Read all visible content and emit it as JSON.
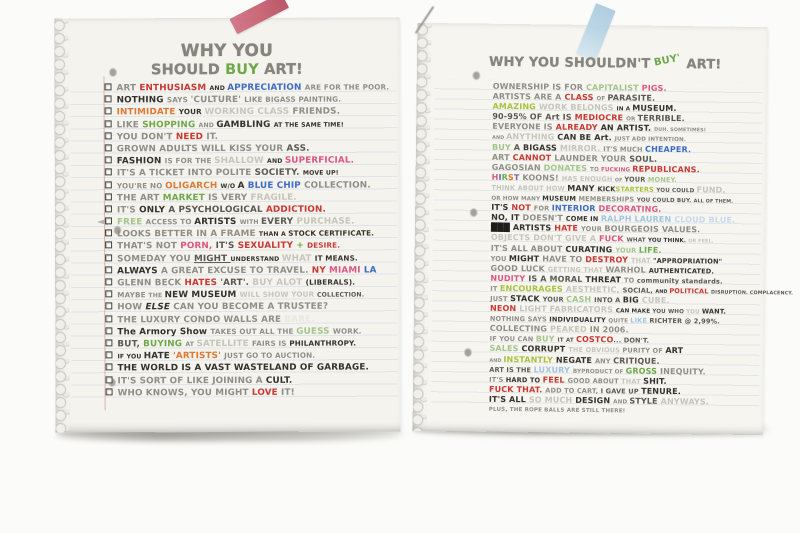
{
  "palette": {
    "g": "#8f8e86",
    "lg": "#c6c5bc",
    "k": "#33322c",
    "dk": "#5a5850",
    "ink": "#1f1e1a",
    "red": "#c93832",
    "pink": "#dd5680",
    "orange": "#dd7a33",
    "green": "#6fa84a",
    "lime": "#a9c23d",
    "ltgreen": "#a4c48b",
    "blue": "#3e6bc4",
    "ltblue": "#a3c4e0",
    "cloud": "#c6daec",
    "purple": "#7d68a8",
    "bare": "#e9e8e1",
    "paper_left": "#f4f3ee",
    "paper_right": "#f6f5f0",
    "tape_pink": "#c65b6d",
    "tape_blue": "#b5d2e4",
    "rule_line": "#cfdae4",
    "margin_line": "#dba8a2"
  },
  "left_page": {
    "title_line1": [
      [
        "WHY YOU",
        "t-g"
      ]
    ],
    "title_line2": [
      [
        "SHOULD ",
        "t-g"
      ],
      [
        "BUY ",
        "t-green"
      ],
      [
        "ART!",
        "t-g"
      ]
    ],
    "items": [
      [
        [
          "ART ",
          "c-g"
        ],
        [
          "ENTHUSIASM ",
          "c-red"
        ],
        [
          "AND ",
          "c-k xs"
        ],
        [
          "APPRECIATION ",
          "c-blue"
        ],
        [
          "ARE FOR THE POOR.",
          "c-g sm"
        ]
      ],
      [
        [
          "NOTHING ",
          "c-k"
        ],
        [
          "SAYS ",
          "c-g sm"
        ],
        [
          "'CULTURE' ",
          "c-g"
        ],
        [
          "LIKE BIGASS PAINTING.",
          "c-g sm"
        ]
      ],
      [
        [
          "INTIMIDATE ",
          "c-orange"
        ],
        [
          "YOUR ",
          "c-k sm"
        ],
        [
          "WORKING CLASS ",
          "c-lg"
        ],
        [
          "FRIENDS.",
          "c-g"
        ]
      ],
      [
        [
          "LIKE ",
          "c-g"
        ],
        [
          "SHOPPING ",
          "c-green"
        ],
        [
          "AND ",
          "c-g xs"
        ],
        [
          "GAMBLING ",
          "c-k"
        ],
        [
          "AT THE SAME TIME!",
          "c-k xs"
        ]
      ],
      [
        [
          "YOU DON'T ",
          "c-g"
        ],
        [
          "NEED ",
          "c-red"
        ],
        [
          "IT.",
          "c-g"
        ]
      ],
      [
        [
          "GROWN ADULTS WILL KISS YOUR ",
          "c-g"
        ],
        [
          "ASS.",
          "c-dk"
        ]
      ],
      [
        [
          "FASHION ",
          "c-k"
        ],
        [
          "IS FOR THE ",
          "c-g sm"
        ],
        [
          "SHALLOW ",
          "c-lg"
        ],
        [
          "AND ",
          "c-k xs"
        ],
        [
          "SUPERFICIAL.",
          "c-pink"
        ]
      ],
      [
        [
          "IT'S A TICKET INTO POLITE ",
          "c-g"
        ],
        [
          "SOCIETY. ",
          "c-dk"
        ],
        [
          "MOVE UP!",
          "c-k xs"
        ]
      ],
      [
        [
          "YOU'RE NO ",
          "c-g sm"
        ],
        [
          "OLIGARCH ",
          "c-orange"
        ],
        [
          "W/O ",
          "c-k xs"
        ],
        [
          "A ",
          "c-k"
        ],
        [
          "BLUE CHIP ",
          "c-blue"
        ],
        [
          "COLLECTION.",
          "c-g"
        ]
      ],
      [
        [
          "THE ART ",
          "c-g"
        ],
        [
          "MARKET ",
          "c-green"
        ],
        [
          "IS VERY ",
          "c-g"
        ],
        [
          "FRAGILE.",
          "c-lg"
        ]
      ],
      [
        [
          "IT'S ",
          "c-g"
        ],
        [
          "ONLY ",
          "c-k"
        ],
        [
          "A PSYCHOLOGICAL ",
          "c-dk"
        ],
        [
          "ADDICTION.",
          "c-red"
        ]
      ],
      [
        [
          "FREE ",
          "c-ltgreen"
        ],
        [
          "ACCESS TO ",
          "c-g sm"
        ],
        [
          "ARTISTS ",
          "c-k"
        ],
        [
          "WITH ",
          "c-g xs"
        ],
        [
          "EVERY ",
          "c-dk"
        ],
        [
          "PURCHASE.",
          "c-lg"
        ]
      ],
      [
        [
          "LOOKS BETTER IN A FRAME ",
          "c-g"
        ],
        [
          "THAN A ",
          "c-k xs"
        ],
        [
          "STOCK CERTIFICATE.",
          "c-k sm"
        ]
      ],
      [
        [
          "THAT'S NOT ",
          "c-g"
        ],
        [
          "PORN, ",
          "c-pink"
        ],
        [
          "IT'S ",
          "c-dk"
        ],
        [
          "SEXUALITY ",
          "c-red"
        ],
        [
          "+ ",
          "c-green"
        ],
        [
          "DESIRE.",
          "c-red sm"
        ]
      ],
      [
        [
          "SOMEDAY YOU ",
          "c-g"
        ],
        [
          "MIGHT ",
          "c-dk u"
        ],
        [
          "UNDERSTAND ",
          "c-k xs"
        ],
        [
          "WHAT ",
          "c-lg"
        ],
        [
          "IT MEANS.",
          "c-k sm"
        ]
      ],
      [
        [
          "ALWAYS ",
          "c-k"
        ],
        [
          "A GREAT EXCUSE TO TRAVEL. ",
          "c-g"
        ],
        [
          "NY ",
          "c-red"
        ],
        [
          "MIAMI ",
          "c-pink"
        ],
        [
          "LA",
          "c-blue"
        ]
      ],
      [
        [
          "GLENN BECK ",
          "c-g"
        ],
        [
          "HATES ",
          "c-red"
        ],
        [
          "'ART'. ",
          "c-dk"
        ],
        [
          "BUY ALOT ",
          "c-lg"
        ],
        [
          "(LIBERALS).",
          "c-k sm"
        ]
      ],
      [
        [
          "MAYBE ",
          "c-g sm"
        ],
        [
          "THE ",
          "c-g xs"
        ],
        [
          "NEW MUSEUM ",
          "c-k"
        ],
        [
          "WILL SHOW YOUR ",
          "c-lg sm"
        ],
        [
          "COLLECTION.",
          "c-dk xs"
        ]
      ],
      [
        [
          "HOW ",
          "c-g"
        ],
        [
          "ELSE ",
          "c-k it"
        ],
        [
          "CAN YOU BECOME A TRUSTEE?",
          "c-g"
        ]
      ],
      [
        [
          "THE LUXURY CONDO WALLS ARE ",
          "c-g"
        ],
        [
          "BARE.",
          "c-bare"
        ]
      ],
      [
        [
          "The Armory Show ",
          "c-k"
        ],
        [
          "TAKES OUT ALL THE ",
          "c-g sm"
        ],
        [
          "GUESS ",
          "c-ltgreen"
        ],
        [
          "WORK.",
          "c-g sm"
        ]
      ],
      [
        [
          "BUT, ",
          "c-dk"
        ],
        [
          "BUYING ",
          "c-green"
        ],
        [
          "AT ",
          "c-g xs"
        ],
        [
          "SATELLITE ",
          "c-lg"
        ],
        [
          "FAIRS IS ",
          "c-g sm"
        ],
        [
          "PHILANTHROPY.",
          "c-k sm"
        ]
      ],
      [
        [
          "IF YOU ",
          "c-k xs"
        ],
        [
          "HATE ",
          "c-k"
        ],
        [
          "'ARTISTS' ",
          "c-orange"
        ],
        [
          "JUST GO TO AUCTION.",
          "c-g sm"
        ]
      ],
      [
        [
          "THE WORLD IS A VAST WASTELAND OF GARBAGE.",
          "c-k"
        ]
      ],
      [
        [
          "IT'S SORT OF LIKE JOINING A ",
          "c-g"
        ],
        [
          "CULT.",
          "c-k"
        ]
      ],
      [
        [
          "WHO KNOWS, YOU MIGHT ",
          "c-g"
        ],
        [
          "LOVE ",
          "c-red"
        ],
        [
          "IT!",
          "c-g"
        ]
      ]
    ]
  },
  "right_page": {
    "title": [
      [
        "WHY YOU SHOULDN'T ",
        "t-g"
      ],
      [
        "BUY'",
        "t-buy"
      ],
      [
        " ART!",
        "t-g"
      ]
    ],
    "items": [
      [
        [
          "OWNERSHIP IS FOR ",
          "c-g"
        ],
        [
          "CAPITALIST ",
          "c-ltgreen"
        ],
        [
          "PIGS.",
          "c-pink"
        ]
      ],
      [
        [
          "ARTISTS ARE A ",
          "c-g"
        ],
        [
          "CLASS ",
          "c-red"
        ],
        [
          "OF ",
          "c-g xs"
        ],
        [
          "PARASITE.",
          "c-dk"
        ]
      ],
      [
        [
          "AMAZING ",
          "c-lime"
        ],
        [
          "WORK BELONGS ",
          "c-lg"
        ],
        [
          "IN A ",
          "c-k xs"
        ],
        [
          "MUSEUM.",
          "c-k"
        ]
      ],
      [
        [
          "90-95% OF Art IS ",
          "c-dk"
        ],
        [
          "MEDIOCRE ",
          "c-red"
        ],
        [
          "OR ",
          "c-g xs"
        ],
        [
          "TERRIBLE.",
          "c-dk"
        ]
      ],
      [
        [
          "EVERYONE IS ",
          "c-g"
        ],
        [
          "ALREADY ",
          "c-red"
        ],
        [
          "AN ARTIST. ",
          "c-k"
        ],
        [
          "DUH. SOMETIMES!",
          "c-g tiny"
        ]
      ],
      [
        [
          "AND ",
          "c-g tiny"
        ],
        [
          "ANYTHING ",
          "c-lg"
        ],
        [
          "CAN BE Art. ",
          "c-k"
        ],
        [
          "JUST ADD INTENTION.",
          "c-g xs"
        ]
      ],
      [
        [
          "BUY ",
          "c-ltgreen"
        ],
        [
          "A ",
          "c-dk"
        ],
        [
          "BIGASS ",
          "c-k"
        ],
        [
          "MIRROR. ",
          "c-lg"
        ],
        [
          "IT'S MUCH ",
          "c-g sm"
        ],
        [
          "CHEAPER.",
          "c-blue"
        ]
      ],
      [
        [
          "ART ",
          "c-g"
        ],
        [
          "CANNOT ",
          "c-red"
        ],
        [
          "LAUNDER YOUR ",
          "c-g"
        ],
        [
          "SOUL.",
          "c-dk"
        ]
      ],
      [
        [
          "GAGOSIAN ",
          "c-g"
        ],
        [
          "DONATES ",
          "c-ltgreen"
        ],
        [
          "TO ",
          "c-g xs"
        ],
        [
          "FUCKING ",
          "c-pink xs"
        ],
        [
          "REPUBLICANS.",
          "c-red"
        ]
      ],
      [
        [
          "H",
          "c-pink"
        ],
        [
          "I",
          "c-blue"
        ],
        [
          "R",
          "c-green"
        ],
        [
          "S",
          "c-orange"
        ],
        [
          "T ",
          "c-purple"
        ],
        [
          "KOONS! ",
          "c-g"
        ],
        [
          "HAS ENOUGH ",
          "c-lg sm"
        ],
        [
          "OF ",
          "c-g tiny"
        ],
        [
          "YOUR ",
          "c-dk sm"
        ],
        [
          "MONEY.",
          "c-ltgreen sm"
        ]
      ],
      [
        [
          "THINK ABOUT HOW ",
          "c-lg sm"
        ],
        [
          "MANY ",
          "c-k"
        ],
        [
          "KICK",
          "c-k sm"
        ],
        [
          "STARTERS ",
          "c-lime sm"
        ],
        [
          "YOU COULD ",
          "c-dk xs"
        ],
        [
          "FUND,",
          "c-lg"
        ]
      ],
      [
        [
          "OR HOW MANY ",
          "c-g xs"
        ],
        [
          "MUSEUM ",
          "c-k sm"
        ],
        [
          "MEMBERSHIPS ",
          "c-g sm"
        ],
        [
          "YOU COULD BUY. ",
          "c-dk xs"
        ],
        [
          "ALL OF THEM.",
          "c-dk tiny"
        ]
      ],
      [
        [
          "IT'S ",
          "c-k"
        ],
        [
          "NOT ",
          "c-red"
        ],
        [
          "FOR ",
          "c-g sm"
        ],
        [
          "INTERIOR ",
          "c-blue"
        ],
        [
          "DECORATING.",
          "c-pink"
        ]
      ],
      [
        [
          "NO, IT ",
          "c-k"
        ],
        [
          "DOESN'T ",
          "c-g"
        ],
        [
          "COME IN ",
          "c-k sm"
        ],
        [
          "RALPH LAUREN ",
          "c-ltblue"
        ],
        [
          "CLOUD BLUE.",
          "c-cloud"
        ]
      ],
      [
        [
          "███ ",
          "c-ink"
        ],
        [
          "ARTISTS ",
          "c-k"
        ],
        [
          "HATE ",
          "c-red"
        ],
        [
          "YOUR ",
          "c-g sm"
        ],
        [
          "BOURGEOIS ",
          "c-g"
        ],
        [
          "VALUES.",
          "c-g"
        ]
      ],
      [
        [
          "OBJECTS DON'T GIVE A ",
          "c-lg"
        ],
        [
          "FUCK ",
          "c-pink"
        ],
        [
          "WHAT ",
          "c-dk xs"
        ],
        [
          "YOU THINK. ",
          "c-k xs"
        ],
        [
          "OR FEEL.",
          "c-lg tiny"
        ]
      ],
      [
        [
          "IT'S ALL ABOUT ",
          "c-g"
        ],
        [
          "CURATING ",
          "c-k"
        ],
        [
          "YOUR ",
          "c-ltgreen sm"
        ],
        [
          "LIFE.",
          "c-green"
        ]
      ],
      [
        [
          "YOU ",
          "c-g sm"
        ],
        [
          "MIGHT ",
          "c-k"
        ],
        [
          "HAVE TO ",
          "c-g"
        ],
        [
          "DESTROY ",
          "c-red"
        ],
        [
          "THAT ",
          "c-lg sm"
        ],
        [
          "\"APPROPRIATION\"",
          "c-k sm"
        ]
      ],
      [
        [
          "GOOD LUCK ",
          "c-g"
        ],
        [
          "GETTING THAT ",
          "c-lg sm"
        ],
        [
          "WARHOL ",
          "c-g"
        ],
        [
          "AUTHENTICATED.",
          "c-k sm"
        ]
      ],
      [
        [
          "NUDITY ",
          "c-pink"
        ],
        [
          "IS A MORAL ",
          "c-dk"
        ],
        [
          "THREAT ",
          "c-k"
        ],
        [
          "TO ",
          "c-g sm"
        ],
        [
          "community standards.",
          "c-dk sm"
        ]
      ],
      [
        [
          "IT ",
          "c-g sm"
        ],
        [
          "ENCOURAGES ",
          "c-lime"
        ],
        [
          "AESTHETIC, ",
          "c-lg"
        ],
        [
          "SOCIAL, ",
          "c-dk sm"
        ],
        [
          "AND ",
          "c-k tiny"
        ],
        [
          "POLITICAL ",
          "c-red sm"
        ],
        [
          "DISRUPTION. COMPLACENCY.",
          "c-dk tiny"
        ]
      ],
      [
        [
          "JUST ",
          "c-g sm"
        ],
        [
          "STACK ",
          "c-k"
        ],
        [
          "YOUR ",
          "c-dk sm"
        ],
        [
          "CASH ",
          "c-ltgreen"
        ],
        [
          "INTO A ",
          "c-dk sm"
        ],
        [
          "BIG ",
          "c-k"
        ],
        [
          "CUBE.",
          "c-lg"
        ]
      ],
      [
        [
          "NEON ",
          "c-red"
        ],
        [
          "LIGHT FABRICATORS ",
          "c-lg"
        ],
        [
          "CAN MAKE ",
          "c-k xs"
        ],
        [
          "YOU WHO ",
          "c-dk xs"
        ],
        [
          "YOU ",
          "c-lg xs"
        ],
        [
          "WANT.",
          "c-k sm"
        ]
      ],
      [
        [
          "NOTHING SAYS ",
          "c-g sm"
        ],
        [
          "INDIVIDUALITY ",
          "c-k sm"
        ],
        [
          "QUITE ",
          "c-g xs"
        ],
        [
          "LIKE ",
          "c-ltblue sm"
        ],
        [
          "RICHTER @ 2,99%.",
          "c-dk sm"
        ]
      ],
      [
        [
          "COLLECTING ",
          "c-g"
        ],
        [
          "PEAKED ",
          "c-lg"
        ],
        [
          "IN 2006.",
          "c-g"
        ]
      ],
      [
        [
          "IF YOU CAN ",
          "c-g sm"
        ],
        [
          "BUY ",
          "c-ltgreen"
        ],
        [
          "IT AT ",
          "c-dk xs"
        ],
        [
          "COSTCO",
          "c-red"
        ],
        [
          "... DON'T.",
          "c-dk sm"
        ]
      ],
      [
        [
          "SALES ",
          "c-ltgreen"
        ],
        [
          "CORRUPT ",
          "c-k"
        ],
        [
          "THE OBVIOUS ",
          "c-lg sm"
        ],
        [
          "PURITY OF ",
          "c-g sm"
        ],
        [
          "ART",
          "c-k"
        ]
      ],
      [
        [
          "AND ",
          "c-g tiny"
        ],
        [
          "INSTANTLY ",
          "c-lime"
        ],
        [
          "NEGATE ",
          "c-k"
        ],
        [
          "ANY ",
          "c-g sm"
        ],
        [
          "CRITIQUE.",
          "c-dk"
        ]
      ],
      [
        [
          "ART IS THE ",
          "c-dk sm"
        ],
        [
          "LUXURY ",
          "c-ltblue"
        ],
        [
          "BYPRODUCT OF ",
          "c-g xs"
        ],
        [
          "GROSS ",
          "c-green"
        ],
        [
          "INEQUITY.",
          "c-g"
        ]
      ],
      [
        [
          "IT'S ",
          "c-g sm"
        ],
        [
          "HARD TO ",
          "c-k sm"
        ],
        [
          "FEEL ",
          "c-red"
        ],
        [
          "GOOD ABOUT ",
          "c-g sm"
        ],
        [
          "THAT ",
          "c-lg sm"
        ],
        [
          "SHIT.",
          "c-k"
        ]
      ],
      [
        [
          "FUCK THAT. ",
          "c-red"
        ],
        [
          "ADD TO CART, ",
          "c-g sm"
        ],
        [
          "I GAVE UP ",
          "c-dk sm"
        ],
        [
          "TENURE.",
          "c-k"
        ]
      ],
      [
        [
          "IT'S ALL ",
          "c-k"
        ],
        [
          "SO MUCH ",
          "c-lg"
        ],
        [
          "DESIGN ",
          "c-k"
        ],
        [
          "AND ",
          "c-g xs"
        ],
        [
          "STYLE ",
          "c-dk"
        ],
        [
          "ANYWAYS.",
          "c-lg"
        ]
      ]
    ],
    "footnote": "PLUS, THE ROPE BALLS ARE STILL THERE!"
  }
}
